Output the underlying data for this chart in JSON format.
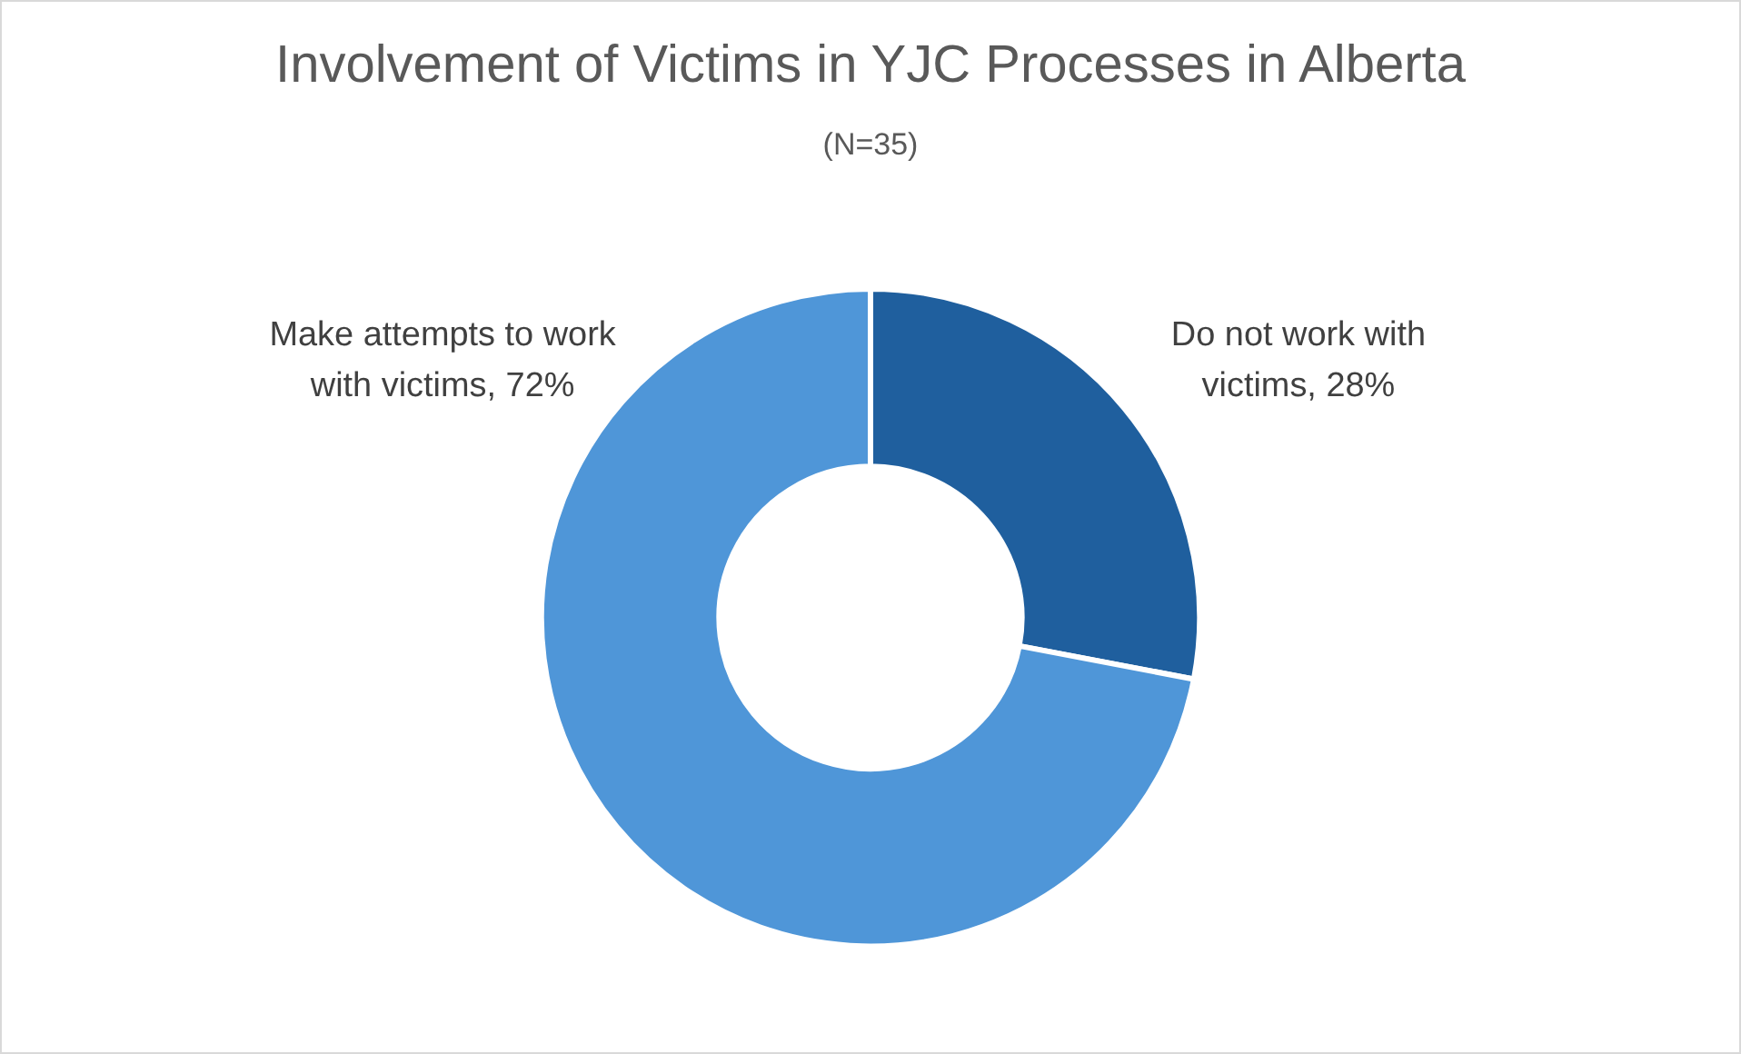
{
  "chart_data": {
    "type": "donut",
    "title": "Involvement of Victims in YJC Processes in Alberta",
    "subtitle": "(N=35)",
    "categories": [
      "Do not work with victims",
      "Make attempts to work with victims"
    ],
    "values": [
      28,
      72
    ],
    "colors": [
      "#1f5f9e",
      "#4f96d8"
    ],
    "value_labels": [
      "28%",
      "72%"
    ],
    "legend": false
  }
}
